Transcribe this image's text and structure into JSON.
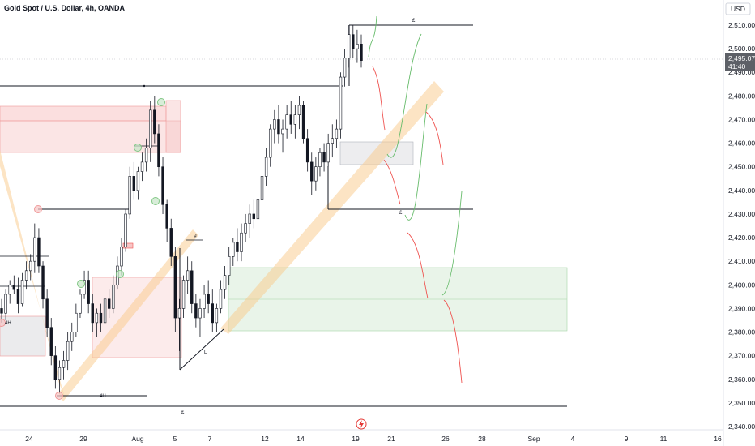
{
  "header": {
    "title": "Gold Spot / U.S. Dollar, 4h, OANDA"
  },
  "axis": {
    "currency": "USD",
    "last_price": "2,495.070",
    "countdown": "41:40",
    "y_ticks": [
      "2,510.000",
      "2,500.000",
      "2,490.000",
      "2,480.000",
      "2,470.000",
      "2,460.000",
      "2,450.000",
      "2,440.000",
      "2,430.000",
      "2,420.000",
      "2,410.000",
      "2,400.000",
      "2,390.000",
      "2,380.000",
      "2,370.000",
      "2,360.000",
      "2,350.000",
      "2,340.000"
    ],
    "x_ticks": [
      "24",
      "29",
      "Aug",
      "5",
      "7",
      "12",
      "14",
      "19",
      "21",
      "26",
      "28",
      "Sep",
      "4",
      "9",
      "11",
      "16"
    ]
  },
  "annotations": {
    "l_top": "£",
    "l_mid": "£",
    "l_bottom": "£",
    "l_aug": "£",
    "l_small": "L",
    "label_4h_a": "4H",
    "label_4h_b": "4H"
  },
  "colors": {
    "up": "#131722",
    "down": "#131722",
    "body_up": "#ffffff",
    "body_down": "#131722",
    "accent_blue": "#1e5799",
    "supply": "#f7c5c5",
    "demand": "#cfe6cf",
    "channel": "#f9c98a",
    "arrow_up": "#66bb6a",
    "arrow_down": "#ef5350",
    "price_tag": "#5d6067"
  },
  "chart_data": {
    "type": "candlestick",
    "title": "Gold Spot / U.S. Dollar, 4h, OANDA",
    "ylim": [
      2340,
      2515
    ],
    "last_price": 2495.07,
    "key_levels": [
      2509,
      2432,
      2489.5,
      2431,
      2350
    ],
    "zones": [
      {
        "kind": "supply",
        "from": 2468,
        "to": 2472
      },
      {
        "kind": "supply",
        "from": 2456,
        "to": 2465
      },
      {
        "kind": "demand",
        "from": 2381,
        "to": 2406
      },
      {
        "kind": "consolidation",
        "from": 2450,
        "to": 2461
      }
    ],
    "candles": [
      [
        2390,
        2394,
        2384,
        2388
      ],
      [
        2388,
        2398,
        2385,
        2396
      ],
      [
        2396,
        2402,
        2392,
        2400
      ],
      [
        2400,
        2404,
        2396,
        2398
      ],
      [
        2398,
        2403,
        2388,
        2392
      ],
      [
        2392,
        2405,
        2391,
        2402
      ],
      [
        2402,
        2410,
        2398,
        2406
      ],
      [
        2406,
        2413,
        2402,
        2410
      ],
      [
        2410,
        2426,
        2405,
        2420
      ],
      [
        2420,
        2424,
        2405,
        2408
      ],
      [
        2408,
        2410,
        2390,
        2394
      ],
      [
        2394,
        2398,
        2378,
        2382
      ],
      [
        2382,
        2386,
        2366,
        2370
      ],
      [
        2370,
        2374,
        2356,
        2360
      ],
      [
        2360,
        2368,
        2354,
        2365
      ],
      [
        2365,
        2372,
        2360,
        2368
      ],
      [
        2368,
        2380,
        2364,
        2376
      ],
      [
        2376,
        2384,
        2372,
        2380
      ],
      [
        2380,
        2392,
        2378,
        2388
      ],
      [
        2388,
        2398,
        2386,
        2396
      ],
      [
        2396,
        2406,
        2394,
        2402
      ],
      [
        2402,
        2406,
        2388,
        2392
      ],
      [
        2392,
        2396,
        2380,
        2384
      ],
      [
        2384,
        2390,
        2378,
        2388
      ],
      [
        2388,
        2392,
        2380,
        2384
      ],
      [
        2384,
        2396,
        2382,
        2394
      ],
      [
        2394,
        2398,
        2386,
        2390
      ],
      [
        2390,
        2404,
        2388,
        2400
      ],
      [
        2400,
        2412,
        2398,
        2408
      ],
      [
        2408,
        2420,
        2404,
        2416
      ],
      [
        2416,
        2432,
        2414,
        2430
      ],
      [
        2430,
        2450,
        2428,
        2446
      ],
      [
        2446,
        2452,
        2436,
        2440
      ],
      [
        2440,
        2450,
        2436,
        2448
      ],
      [
        2448,
        2456,
        2444,
        2452
      ],
      [
        2452,
        2462,
        2448,
        2458
      ],
      [
        2458,
        2478,
        2452,
        2474
      ],
      [
        2474,
        2480,
        2460,
        2464
      ],
      [
        2464,
        2468,
        2446,
        2450
      ],
      [
        2450,
        2454,
        2430,
        2434
      ],
      [
        2434,
        2436,
        2418,
        2424
      ],
      [
        2424,
        2428,
        2408,
        2412
      ],
      [
        2412,
        2416,
        2380,
        2386
      ],
      [
        2386,
        2394,
        2372,
        2390
      ],
      [
        2390,
        2404,
        2386,
        2402
      ],
      [
        2402,
        2412,
        2396,
        2406
      ],
      [
        2406,
        2410,
        2388,
        2392
      ],
      [
        2392,
        2396,
        2382,
        2386
      ],
      [
        2386,
        2394,
        2378,
        2390
      ],
      [
        2390,
        2400,
        2386,
        2396
      ],
      [
        2396,
        2402,
        2388,
        2392
      ],
      [
        2392,
        2398,
        2380,
        2384
      ],
      [
        2384,
        2392,
        2380,
        2390
      ],
      [
        2390,
        2402,
        2388,
        2398
      ],
      [
        2398,
        2408,
        2394,
        2404
      ],
      [
        2404,
        2416,
        2400,
        2412
      ],
      [
        2412,
        2420,
        2408,
        2418
      ],
      [
        2418,
        2424,
        2410,
        2414
      ],
      [
        2414,
        2426,
        2410,
        2422
      ],
      [
        2422,
        2430,
        2418,
        2426
      ],
      [
        2426,
        2434,
        2420,
        2430
      ],
      [
        2430,
        2436,
        2424,
        2428
      ],
      [
        2428,
        2440,
        2426,
        2436
      ],
      [
        2436,
        2448,
        2432,
        2446
      ],
      [
        2446,
        2458,
        2442,
        2454
      ],
      [
        2454,
        2468,
        2450,
        2466
      ],
      [
        2466,
        2474,
        2460,
        2470
      ],
      [
        2470,
        2476,
        2460,
        2464
      ],
      [
        2464,
        2470,
        2456,
        2466
      ],
      [
        2466,
        2476,
        2462,
        2472
      ],
      [
        2472,
        2478,
        2464,
        2468
      ],
      [
        2468,
        2476,
        2462,
        2472
      ],
      [
        2472,
        2480,
        2466,
        2476
      ],
      [
        2476,
        2478,
        2460,
        2462
      ],
      [
        2462,
        2466,
        2448,
        2452
      ],
      [
        2452,
        2456,
        2438,
        2444
      ],
      [
        2444,
        2454,
        2440,
        2450
      ],
      [
        2450,
        2458,
        2446,
        2456
      ],
      [
        2456,
        2460,
        2448,
        2452
      ],
      [
        2452,
        2464,
        2450,
        2460
      ],
      [
        2460,
        2468,
        2454,
        2462
      ],
      [
        2462,
        2470,
        2458,
        2466
      ],
      [
        2466,
        2490,
        2462,
        2488
      ],
      [
        2488,
        2500,
        2484,
        2496
      ],
      [
        2496,
        2510,
        2492,
        2506
      ],
      [
        2506,
        2510,
        2496,
        2500
      ],
      [
        2500,
        2508,
        2494,
        2502
      ],
      [
        2502,
        2506,
        2492,
        2495
      ]
    ]
  }
}
